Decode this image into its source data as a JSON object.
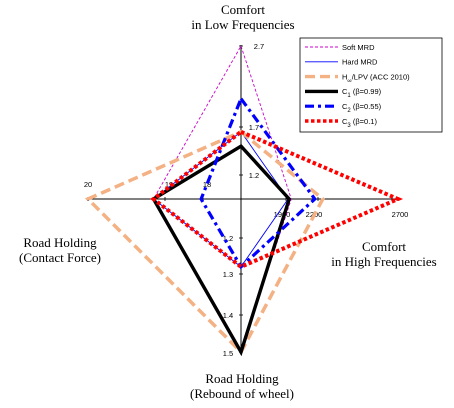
{
  "chart_data": {
    "type": "radar",
    "axes": [
      {
        "key": "top",
        "label_lines": [
          "Comfort",
          "in Low Frequencies"
        ],
        "ticks": [
          "2.7",
          "1.7",
          "1.2"
        ]
      },
      {
        "key": "right",
        "label_lines": [
          "Comfort",
          "in High Frequencies"
        ],
        "ticks": [
          "1900",
          "2200",
          "2700"
        ]
      },
      {
        "key": "bottom",
        "label_lines": [
          "Road Holding",
          "(Rebound of wheel)"
        ],
        "ticks": [
          "1.2",
          "1.3",
          "1.4",
          "1.5"
        ]
      },
      {
        "key": "left",
        "label_lines": [
          "Road Holding",
          "(Contact Force)"
        ],
        "ticks": [
          "20",
          "19",
          "18"
        ]
      }
    ],
    "series": [
      {
        "name": "Soft MRD",
        "color": "#cc00cc",
        "style": "dashed-thin",
        "values": {
          "top": 2.7,
          "right": 1950,
          "bottom": 1.5,
          "left": 19.15
        }
      },
      {
        "name": "Hard MRD",
        "color": "#0000ff",
        "style": "solid-thin",
        "values": {
          "top": 1.65,
          "right": 1920,
          "bottom": 1.28,
          "left": 19.15
        }
      },
      {
        "name_parts": [
          "H",
          "∞",
          "/LPV (ACC 2010)"
        ],
        "color": "#f4b183",
        "style": "dashed-thick",
        "values": {
          "top": 1.65,
          "right": 2230,
          "bottom": 1.5,
          "left": 20.0
        }
      },
      {
        "name_parts": [
          "C",
          "1",
          " (β=0.99)"
        ],
        "color": "#000000",
        "style": "solid-thick",
        "values": {
          "top": 1.5,
          "right": 1930,
          "bottom": 1.5,
          "left": 19.15
        }
      },
      {
        "name_parts": [
          "C",
          "2",
          " (β=0.55)"
        ],
        "color": "#0000ff",
        "style": "dashdot-thick",
        "values": {
          "top": 2.05,
          "right": 2170,
          "bottom": 1.28,
          "left": 18.05
        }
      },
      {
        "name_parts": [
          "C",
          "3",
          " (β=0.1)"
        ],
        "color": "#ff0000",
        "style": "dotted-thick",
        "values": {
          "top": 1.65,
          "right": 2700,
          "bottom": 1.28,
          "left": 19.15
        }
      }
    ]
  }
}
